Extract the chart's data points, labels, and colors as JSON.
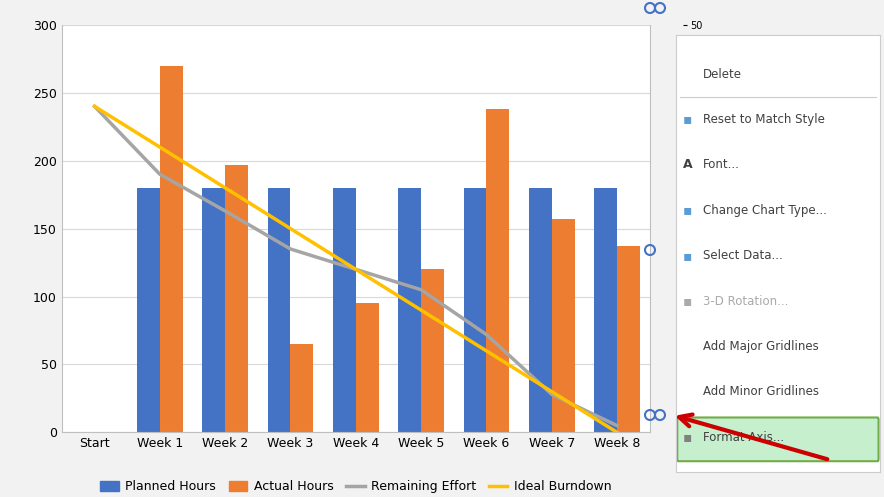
{
  "categories": [
    "Start",
    "Week 1",
    "Week 2",
    "Week 3",
    "Week 4",
    "Week 5",
    "Week 6",
    "Week 7",
    "Week 8"
  ],
  "planned_hours": [
    0,
    180,
    180,
    180,
    180,
    180,
    180,
    180,
    180
  ],
  "actual_hours": [
    0,
    270,
    197,
    65,
    95,
    120,
    238,
    157,
    137
  ],
  "remaining_effort": [
    240,
    190,
    163,
    135,
    120,
    105,
    72,
    28,
    5
  ],
  "ideal_burndown": [
    240,
    210,
    180,
    150,
    120,
    90,
    60,
    30,
    0
  ],
  "bar_color_planned": "#4472C4",
  "bar_color_actual": "#ED7D31",
  "line_color_remaining": "#A5A5A5",
  "line_color_ideal": "#FFC000",
  "ylim": [
    0,
    300
  ],
  "yticks": [
    0,
    50,
    100,
    150,
    200,
    250,
    300
  ],
  "grid_color": "#D9D9D9",
  "chart_bg": "#FFFFFF",
  "legend_labels": [
    "Planned Hours",
    "Actual Hours",
    "Remaining Effort",
    "Ideal Burndown"
  ],
  "context_menu_items": [
    "Delete",
    "Reset to Match Style",
    "Font...",
    "Change Chart Type...",
    "Select Data...",
    "3-D Rotation...",
    "Add Major Gridlines",
    "Add Minor Gridlines",
    "Format Axis..."
  ],
  "context_menu_highlighted": "Format Axis...",
  "arrow_color": "#CC0000"
}
